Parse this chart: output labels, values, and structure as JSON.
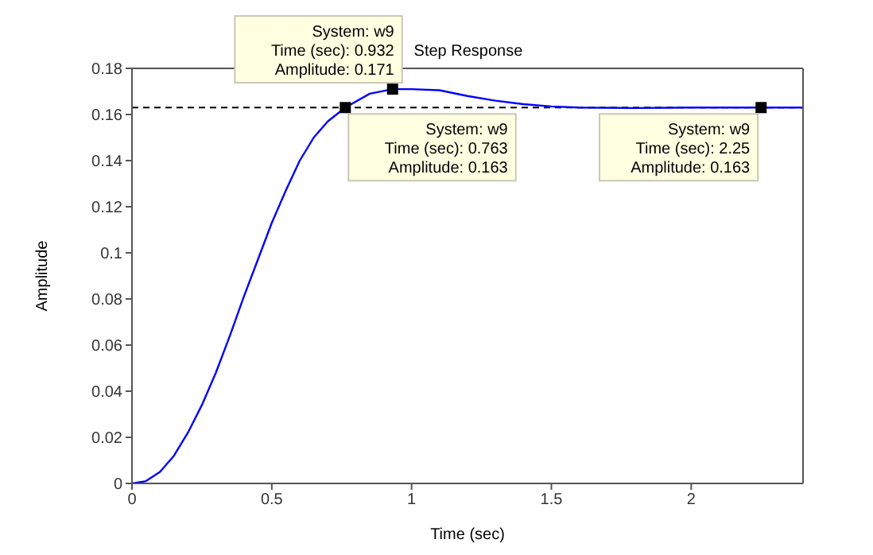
{
  "chart_data": {
    "type": "line",
    "title": "Step Response",
    "xlabel": "Time (sec)",
    "ylabel": "Amplitude",
    "xlim": [
      0,
      2.4
    ],
    "xticks": [
      0,
      0.5,
      1,
      1.5,
      2
    ],
    "ylim": [
      0,
      0.18
    ],
    "yticks": [
      0,
      0.02,
      0.04,
      0.06,
      0.08,
      0.1,
      0.12,
      0.14,
      0.16,
      0.18
    ],
    "grid": false,
    "legend": false,
    "line_style": "solid",
    "marker": "none",
    "series": [
      {
        "color": "#0000ff",
        "x": [
          0,
          0.05,
          0.1,
          0.15,
          0.2,
          0.25,
          0.3,
          0.35,
          0.4,
          0.45,
          0.5,
          0.55,
          0.6,
          0.65,
          0.7,
          0.763,
          0.85,
          0.932,
          1.0,
          1.1,
          1.2,
          1.3,
          1.4,
          1.5,
          1.6,
          1.8,
          2.0,
          2.25,
          2.4
        ],
        "values": [
          0,
          0.001,
          0.005,
          0.012,
          0.022,
          0.034,
          0.048,
          0.064,
          0.081,
          0.097,
          0.113,
          0.127,
          0.14,
          0.15,
          0.157,
          0.163,
          0.169,
          0.171,
          0.171,
          0.1705,
          0.168,
          0.166,
          0.1645,
          0.1635,
          0.163,
          0.1628,
          0.163,
          0.163,
          0.163
        ]
      },
      {
        "type": "scatter",
        "color": "#000000",
        "marker": "square",
        "x": [
          0.763,
          0.932,
          2.25
        ],
        "values": [
          0.163,
          0.171,
          0.163
        ]
      }
    ],
    "ref_lines": [
      {
        "axis": "y",
        "value": 0.163,
        "color": "#000000",
        "line_style": "dashed"
      }
    ],
    "annotations": [
      {
        "text": "System: w9\nTime (sec): 0.932\nAmplitude: 0.171",
        "x": 0.932,
        "y": 0.171
      },
      {
        "text": "System: w9\nTime (sec): 0.763\nAmplitude: 0.163",
        "x": 0.763,
        "y": 0.163
      },
      {
        "text": "System: w9\nTime (sec): 2.25\nAmplitude: 0.163",
        "x": 2.25,
        "y": 0.163
      }
    ]
  }
}
